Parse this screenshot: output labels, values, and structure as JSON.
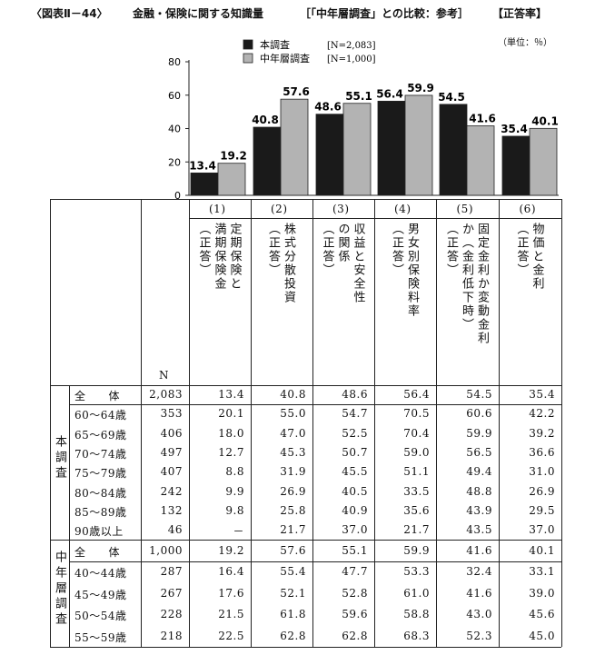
{
  "header": {
    "figure_no": "〈図表Ⅱ－44〉",
    "subject": "金融・保険に関する知識量",
    "comparison": "［「中年層調査」との比較：参考］",
    "rate_label": "【正答率】",
    "unit": "（単位：％）"
  },
  "chart_data": {
    "type": "bar",
    "categories": [
      "(1)",
      "(2)",
      "(3)",
      "(4)",
      "(5)",
      "(6)"
    ],
    "series": [
      {
        "name": "本調査",
        "n_label": "[N=2,083]",
        "color": "#1a1a1a",
        "values": [
          13.4,
          40.8,
          48.6,
          56.4,
          54.5,
          35.4
        ]
      },
      {
        "name": "中年層調査",
        "n_label": "[N=1,000]",
        "color": "#b3b3b3",
        "values": [
          19.2,
          57.6,
          55.1,
          59.9,
          41.6,
          40.1
        ]
      }
    ],
    "value_labels": [
      [
        "13.4",
        "19.2"
      ],
      [
        "40.8",
        "57.6"
      ],
      [
        "48.6",
        "55.1"
      ],
      [
        "56.4",
        "59.9"
      ],
      [
        "54.5",
        "41.6"
      ],
      [
        "35.4",
        "40.1"
      ]
    ],
    "yticks": [
      "0",
      "20",
      "40",
      "60",
      "80"
    ],
    "ylim": [
      0,
      80
    ],
    "legend_position": "top-center",
    "grid": false
  },
  "table": {
    "n_header": "N",
    "col_nums": [
      "(1)",
      "(2)",
      "(3)",
      "(4)",
      "(5)",
      "(6)"
    ],
    "col_titles": [
      [
        "定期保険と",
        "満期保険金",
        "（正答）"
      ],
      [
        "株式分散投資",
        "（正答）"
      ],
      [
        "収益と安全性",
        "の関係",
        "（正答）"
      ],
      [
        "男女別保険料率",
        "（正答）"
      ],
      [
        "固定金利か変動金利",
        "か（金利低下時）",
        "（正答）"
      ],
      [
        "物価と金利",
        "（正答）"
      ]
    ],
    "group1_label": "本調査",
    "group2_label": "中年層調査",
    "group1_rows": [
      [
        "全　　体",
        "2,083",
        "13.4",
        "40.8",
        "48.6",
        "56.4",
        "54.5",
        "35.4"
      ],
      [
        "60～64歳",
        "353",
        "20.1",
        "55.0",
        "54.7",
        "70.5",
        "60.6",
        "42.2"
      ],
      [
        "65～69歳",
        "406",
        "18.0",
        "47.0",
        "52.5",
        "70.4",
        "59.9",
        "39.2"
      ],
      [
        "70～74歳",
        "497",
        "12.7",
        "45.3",
        "50.7",
        "59.0",
        "56.5",
        "36.6"
      ],
      [
        "75～79歳",
        "407",
        "8.8",
        "31.9",
        "45.5",
        "51.1",
        "49.4",
        "31.0"
      ],
      [
        "80～84歳",
        "242",
        "9.9",
        "26.9",
        "40.5",
        "33.5",
        "48.8",
        "26.9"
      ],
      [
        "85～89歳",
        "132",
        "9.8",
        "25.8",
        "40.9",
        "35.6",
        "43.9",
        "29.5"
      ],
      [
        "90歳以上",
        "46",
        "－",
        "21.7",
        "37.0",
        "21.7",
        "43.5",
        "37.0"
      ]
    ],
    "group2_rows": [
      [
        "全　　体",
        "1,000",
        "19.2",
        "57.6",
        "55.1",
        "59.9",
        "41.6",
        "40.1"
      ],
      [
        "40～44歳",
        "287",
        "16.4",
        "55.4",
        "47.7",
        "53.3",
        "32.4",
        "33.1"
      ],
      [
        "45～49歳",
        "267",
        "17.6",
        "52.1",
        "52.8",
        "61.0",
        "41.6",
        "39.0"
      ],
      [
        "50～54歳",
        "228",
        "21.5",
        "61.8",
        "59.6",
        "58.8",
        "43.0",
        "45.6"
      ],
      [
        "55～59歳",
        "218",
        "22.5",
        "62.8",
        "62.8",
        "68.3",
        "52.3",
        "45.0"
      ]
    ]
  }
}
